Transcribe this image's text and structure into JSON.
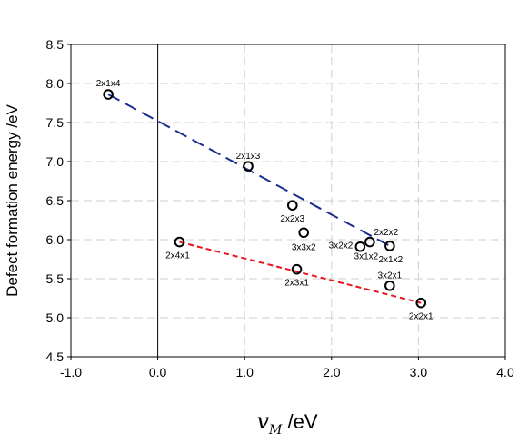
{
  "chart_data": {
    "type": "scatter",
    "ylabel": "Defect formation energy /eV",
    "xlabel": {
      "symbol": "v",
      "subscript": "M",
      "unit": " /eV"
    },
    "xlim": [
      -1.0,
      4.0
    ],
    "ylim": [
      4.5,
      8.5
    ],
    "xticks": [
      "-1.0",
      "0.0",
      "1.0",
      "2.0",
      "3.0",
      "4.0"
    ],
    "yticks": [
      "4.5",
      "5.0",
      "5.5",
      "6.0",
      "6.5",
      "7.0",
      "7.5",
      "8.0",
      "8.5"
    ],
    "grid": "dashed",
    "points": [
      {
        "label": "2x1x4",
        "x": -0.57,
        "y": 7.86
      },
      {
        "label": "2x1x3",
        "x": 1.04,
        "y": 6.94
      },
      {
        "label": "2x2x3",
        "x": 1.55,
        "y": 6.44
      },
      {
        "label": "3x3x2",
        "x": 1.68,
        "y": 6.09
      },
      {
        "label": "2x4x1",
        "x": 0.25,
        "y": 5.97
      },
      {
        "label": "2x3x1",
        "x": 1.6,
        "y": 5.62
      },
      {
        "label": "3x2x2",
        "x": 2.33,
        "y": 5.91
      },
      {
        "label": "3x1x2",
        "x": 2.44,
        "y": 5.97
      },
      {
        "label": "2x2x2",
        "x": 2.67,
        "y": 5.92
      },
      {
        "label": "2x1x2",
        "x": 2.67,
        "y": 5.92
      },
      {
        "label": "3x2x1",
        "x": 2.67,
        "y": 5.41
      },
      {
        "label": "2x2x1",
        "x": 3.03,
        "y": 5.19
      }
    ],
    "fit_lines": [
      {
        "color": "#1c2d8f",
        "style": "long-dash",
        "x": [
          -0.57,
          2.67
        ],
        "y": [
          7.86,
          5.92
        ]
      },
      {
        "color": "#e8141e",
        "style": "short-dash",
        "x": [
          0.25,
          3.03
        ],
        "y": [
          5.97,
          5.19
        ]
      }
    ]
  }
}
